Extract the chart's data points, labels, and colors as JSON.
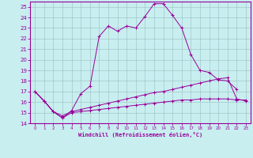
{
  "xlabel": "Windchill (Refroidissement éolien,°C)",
  "background_color": "#c8eef0",
  "line_color": "#990099",
  "xlim": [
    -0.5,
    23.5
  ],
  "ylim": [
    14,
    25.5
  ],
  "xticks": [
    0,
    1,
    2,
    3,
    4,
    5,
    6,
    7,
    8,
    9,
    10,
    11,
    12,
    13,
    14,
    15,
    16,
    17,
    18,
    19,
    20,
    21,
    22,
    23
  ],
  "yticks": [
    14,
    15,
    16,
    17,
    18,
    19,
    20,
    21,
    22,
    23,
    24,
    25
  ],
  "curve1_x": [
    0,
    1,
    2,
    3,
    4,
    5,
    6,
    7,
    8,
    9,
    10,
    11,
    12,
    13,
    14,
    15,
    16,
    17,
    18,
    19,
    20,
    21,
    22
  ],
  "curve1_y": [
    17.0,
    16.1,
    15.1,
    14.5,
    15.2,
    16.8,
    17.5,
    22.2,
    23.2,
    22.7,
    23.2,
    23.0,
    24.1,
    25.3,
    25.3,
    24.2,
    23.0,
    20.5,
    19.0,
    18.8,
    18.1,
    18.0,
    17.2
  ],
  "curve2_x": [
    0,
    1,
    2,
    3,
    4,
    5,
    6,
    7,
    8,
    9,
    10,
    11,
    12,
    13,
    14,
    15,
    16,
    17,
    18,
    19,
    20,
    21,
    22,
    23
  ],
  "curve2_y": [
    17.0,
    16.1,
    15.1,
    14.7,
    15.1,
    15.3,
    15.5,
    15.7,
    15.9,
    16.1,
    16.3,
    16.5,
    16.7,
    16.9,
    17.0,
    17.2,
    17.4,
    17.6,
    17.8,
    18.0,
    18.2,
    18.3,
    16.3,
    16.1
  ],
  "curve3_x": [
    0,
    1,
    2,
    3,
    4,
    5,
    6,
    7,
    8,
    9,
    10,
    11,
    12,
    13,
    14,
    15,
    16,
    17,
    18,
    19,
    20,
    21,
    22,
    23
  ],
  "curve3_y": [
    17.0,
    16.1,
    15.1,
    14.5,
    15.0,
    15.1,
    15.2,
    15.3,
    15.4,
    15.5,
    15.6,
    15.7,
    15.8,
    15.9,
    16.0,
    16.1,
    16.2,
    16.2,
    16.3,
    16.3,
    16.3,
    16.3,
    16.2,
    16.2
  ]
}
